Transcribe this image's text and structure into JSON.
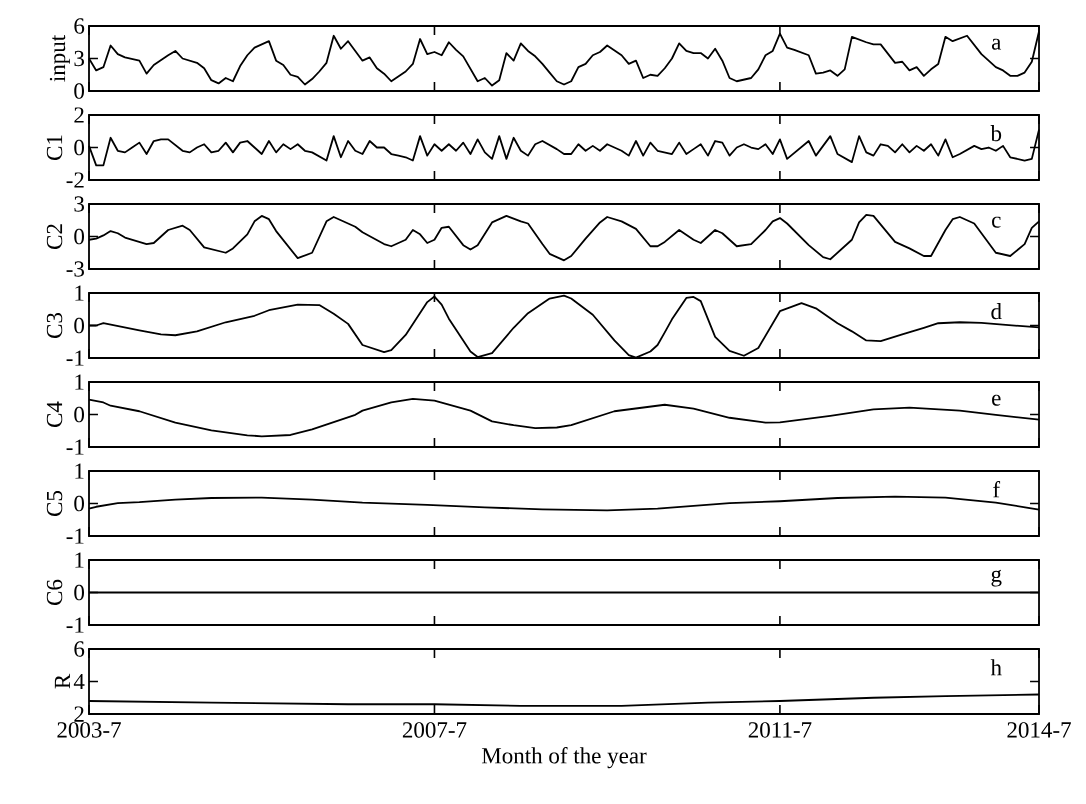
{
  "chart_data": [
    {
      "type": "line",
      "ylabel": "input",
      "annotations": [
        "a"
      ],
      "color": "#000000",
      "tick_labels": "y",
      "xlim": [
        "2003-07",
        "2014-07"
      ],
      "xticks": [
        {
          "value": "2003-07",
          "label": null
        },
        {
          "value": "2007-07",
          "label": null
        },
        {
          "value": "2011-07",
          "label": null
        },
        {
          "value": "2014-07",
          "label": null
        }
      ],
      "ylim": [
        0,
        6
      ],
      "yticks": [
        0,
        3,
        6
      ],
      "x": [
        "2003-07",
        "2003-08",
        "2003-09",
        "2003-10",
        "2003-11",
        "2003-12",
        "2004-02",
        "2004-03",
        "2004-04",
        "2004-06",
        "2004-07",
        "2004-08",
        "2004-10",
        "2004-11",
        "2004-12",
        "2005-01",
        "2005-02",
        "2005-03",
        "2005-04",
        "2005-05",
        "2005-06",
        "2005-08",
        "2005-09",
        "2005-10",
        "2005-11",
        "2005-12",
        "2006-01",
        "2006-02",
        "2006-03",
        "2006-04",
        "2006-05",
        "2006-06",
        "2006-07",
        "2006-08",
        "2006-09",
        "2006-10",
        "2006-11",
        "2006-12",
        "2007-01",
        "2007-03",
        "2007-04",
        "2007-05",
        "2007-06",
        "2007-07",
        "2007-08",
        "2007-09",
        "2007-10",
        "2007-11",
        "2008-01",
        "2008-02",
        "2008-03",
        "2008-04",
        "2008-05",
        "2008-06",
        "2008-07",
        "2008-08",
        "2008-09",
        "2008-10",
        "2008-11",
        "2008-12",
        "2009-01",
        "2009-02",
        "2009-03",
        "2009-04",
        "2009-05",
        "2009-06",
        "2009-07",
        "2009-09",
        "2009-10",
        "2009-11",
        "2009-12",
        "2010-01",
        "2010-02",
        "2010-03",
        "2010-04",
        "2010-05",
        "2010-06",
        "2010-07",
        "2010-08",
        "2010-09",
        "2010-10",
        "2010-11",
        "2010-12",
        "2011-01",
        "2011-03",
        "2011-04",
        "2011-05",
        "2011-06",
        "2011-07",
        "2011-08",
        "2011-09",
        "2011-11",
        "2011-12",
        "2012-01",
        "2012-02",
        "2012-03",
        "2012-04",
        "2012-05",
        "2012-07",
        "2012-08",
        "2012-09",
        "2012-11",
        "2012-12",
        "2013-01",
        "2013-02",
        "2013-03",
        "2013-04",
        "2013-05",
        "2013-06",
        "2013-07",
        "2013-09",
        "2013-11",
        "2014-01",
        "2014-02",
        "2014-03",
        "2014-04",
        "2014-05",
        "2014-06",
        "2014-07"
      ],
      "values": [
        3.0,
        1.9,
        2.2,
        4.2,
        3.4,
        3.1,
        2.8,
        1.6,
        2.4,
        3.3,
        3.7,
        3.0,
        2.6,
        2.1,
        1.0,
        0.7,
        1.2,
        0.9,
        2.3,
        3.3,
        4.0,
        4.6,
        2.8,
        2.4,
        1.5,
        1.3,
        0.6,
        1.1,
        1.8,
        2.6,
        5.1,
        3.9,
        4.6,
        3.7,
        2.8,
        3.1,
        2.1,
        1.6,
        0.9,
        1.8,
        2.5,
        4.8,
        3.4,
        3.6,
        3.3,
        4.5,
        3.8,
        3.2,
        0.9,
        1.2,
        0.5,
        1.0,
        3.5,
        2.8,
        4.4,
        3.7,
        3.2,
        2.5,
        1.7,
        0.9,
        0.6,
        0.9,
        2.2,
        2.5,
        3.3,
        3.6,
        4.2,
        3.3,
        2.5,
        2.8,
        1.2,
        1.5,
        1.4,
        2.1,
        3.0,
        4.4,
        3.7,
        3.5,
        3.5,
        3.0,
        3.9,
        2.8,
        1.2,
        0.9,
        1.2,
        2.0,
        3.3,
        3.7,
        5.3,
        4.0,
        3.8,
        3.3,
        1.6,
        1.7,
        1.9,
        1.4,
        2.0,
        5.0,
        4.5,
        4.3,
        4.3,
        2.6,
        2.7,
        1.9,
        2.2,
        1.4,
        2.0,
        2.5,
        5.0,
        4.6,
        5.1,
        3.4,
        2.2,
        1.9,
        1.4,
        1.4,
        1.7,
        2.7,
        5.5
      ]
    },
    {
      "type": "line",
      "ylabel": "C1",
      "annotations": [
        "b"
      ],
      "color": "#000000",
      "tick_labels": "y",
      "xlim": [
        "2003-07",
        "2014-07"
      ],
      "xticks": [
        {
          "value": "2003-07",
          "label": null
        },
        {
          "value": "2007-07",
          "label": null
        },
        {
          "value": "2011-07",
          "label": null
        },
        {
          "value": "2014-07",
          "label": null
        }
      ],
      "ylim": [
        -2,
        2
      ],
      "yticks": [
        -2,
        0,
        2
      ],
      "x": [
        "2003-07",
        "2003-08",
        "2003-09",
        "2003-10",
        "2003-11",
        "2003-12",
        "2004-01",
        "2004-02",
        "2004-03",
        "2004-04",
        "2004-05",
        "2004-06",
        "2004-08",
        "2004-09",
        "2004-10",
        "2004-11",
        "2004-12",
        "2005-01",
        "2005-02",
        "2005-03",
        "2005-04",
        "2005-05",
        "2005-06",
        "2005-07",
        "2005-08",
        "2005-09",
        "2005-10",
        "2005-11",
        "2005-12",
        "2006-01",
        "2006-02",
        "2006-04",
        "2006-05",
        "2006-06",
        "2006-07",
        "2006-08",
        "2006-09",
        "2006-10",
        "2006-11",
        "2006-12",
        "2007-01",
        "2007-02",
        "2007-03",
        "2007-04",
        "2007-05",
        "2007-06",
        "2007-07",
        "2007-08",
        "2007-09",
        "2007-10",
        "2007-11",
        "2007-12",
        "2008-01",
        "2008-02",
        "2008-03",
        "2008-04",
        "2008-05",
        "2008-06",
        "2008-07",
        "2008-08",
        "2008-09",
        "2008-10",
        "2008-12",
        "2009-01",
        "2009-02",
        "2009-03",
        "2009-04",
        "2009-05",
        "2009-06",
        "2009-07",
        "2009-09",
        "2009-10",
        "2009-11",
        "2009-12",
        "2010-01",
        "2010-02",
        "2010-04",
        "2010-05",
        "2010-06",
        "2010-07",
        "2010-08",
        "2010-09",
        "2010-10",
        "2010-11",
        "2010-12",
        "2011-01",
        "2011-02",
        "2011-03",
        "2011-04",
        "2011-05",
        "2011-06",
        "2011-07",
        "2011-08",
        "2011-11",
        "2011-12",
        "2012-02",
        "2012-03",
        "2012-05",
        "2012-06",
        "2012-07",
        "2012-08",
        "2012-09",
        "2012-10",
        "2012-11",
        "2012-12",
        "2013-01",
        "2013-02",
        "2013-03",
        "2013-04",
        "2013-05",
        "2013-06",
        "2013-07",
        "2013-08",
        "2013-10",
        "2013-11",
        "2013-12",
        "2014-01",
        "2014-02",
        "2014-03",
        "2014-05",
        "2014-06",
        "2014-07"
      ],
      "values": [
        0.1,
        -1.1,
        -1.1,
        0.6,
        -0.2,
        -0.3,
        0.0,
        0.3,
        -0.4,
        0.4,
        0.5,
        0.5,
        -0.2,
        -0.3,
        0.0,
        0.2,
        -0.3,
        -0.2,
        0.3,
        -0.3,
        0.3,
        0.4,
        0.0,
        -0.4,
        0.4,
        -0.3,
        0.2,
        -0.1,
        0.2,
        -0.2,
        -0.3,
        -0.8,
        0.7,
        -0.6,
        0.4,
        -0.2,
        -0.4,
        0.4,
        0.0,
        0.0,
        -0.4,
        -0.5,
        -0.6,
        -0.8,
        0.7,
        -0.5,
        0.2,
        -0.2,
        0.2,
        -0.2,
        0.3,
        -0.4,
        0.5,
        -0.3,
        -0.7,
        0.7,
        -0.7,
        0.6,
        -0.2,
        -0.5,
        0.2,
        0.4,
        -0.1,
        -0.4,
        -0.4,
        0.2,
        -0.2,
        0.1,
        -0.2,
        0.2,
        -0.2,
        -0.5,
        0.4,
        -0.5,
        0.3,
        -0.2,
        -0.4,
        0.3,
        -0.4,
        -0.1,
        0.2,
        -0.5,
        0.4,
        0.3,
        -0.5,
        0.0,
        0.2,
        0.0,
        -0.1,
        0.2,
        -0.4,
        0.5,
        -0.7,
        0.4,
        -0.5,
        0.7,
        -0.4,
        -0.9,
        0.7,
        -0.3,
        -0.5,
        0.2,
        0.1,
        -0.3,
        0.2,
        -0.3,
        0.1,
        -0.2,
        0.2,
        -0.5,
        0.5,
        -0.6,
        -0.4,
        0.1,
        -0.1,
        0.0,
        -0.2,
        0.1,
        -0.6,
        -0.8,
        -0.7,
        1.1
      ]
    },
    {
      "type": "line",
      "ylabel": "C2",
      "annotations": [
        "c"
      ],
      "color": "#000000",
      "tick_labels": "y",
      "xlim": [
        "2003-07",
        "2014-07"
      ],
      "xticks": [
        {
          "value": "2003-07",
          "label": null
        },
        {
          "value": "2007-07",
          "label": null
        },
        {
          "value": "2011-07",
          "label": null
        },
        {
          "value": "2014-07",
          "label": null
        }
      ],
      "ylim": [
        -3,
        3
      ],
      "yticks": [
        -3,
        0,
        3
      ],
      "x": [
        "2003-07",
        "2003-08",
        "2003-09",
        "2003-10",
        "2003-11",
        "2003-12",
        "2004-03",
        "2004-04",
        "2004-06",
        "2004-08",
        "2004-09",
        "2004-11",
        "2005-02",
        "2005-03",
        "2005-05",
        "2005-06",
        "2005-07",
        "2005-08",
        "2005-09",
        "2005-12",
        "2006-02",
        "2006-04",
        "2006-05",
        "2006-08",
        "2006-09",
        "2006-12",
        "2007-01",
        "2007-03",
        "2007-04",
        "2007-05",
        "2007-06",
        "2007-07",
        "2007-08",
        "2007-09",
        "2007-11",
        "2007-12",
        "2008-01",
        "2008-03",
        "2008-05",
        "2008-07",
        "2008-08",
        "2008-10",
        "2008-11",
        "2009-01",
        "2009-02",
        "2009-04",
        "2009-06",
        "2009-07",
        "2009-09",
        "2009-11",
        "2010-01",
        "2010-02",
        "2010-03",
        "2010-05",
        "2010-07",
        "2010-08",
        "2010-10",
        "2010-11",
        "2011-01",
        "2011-03",
        "2011-05",
        "2011-06",
        "2011-07",
        "2011-08",
        "2011-11",
        "2012-01",
        "2012-02",
        "2012-05",
        "2012-06",
        "2012-07",
        "2012-08",
        "2012-11",
        "2013-01",
        "2013-03",
        "2013-04",
        "2013-06",
        "2013-07",
        "2013-08",
        "2013-10",
        "2014-01",
        "2014-03",
        "2014-05",
        "2014-06",
        "2014-07"
      ],
      "values": [
        -0.3,
        -0.2,
        0.1,
        0.5,
        0.3,
        -0.1,
        -0.7,
        -0.6,
        0.6,
        1.0,
        0.6,
        -1.0,
        -1.5,
        -1.1,
        0.2,
        1.4,
        1.9,
        1.6,
        0.5,
        -2.0,
        -1.5,
        1.4,
        1.8,
        0.9,
        0.4,
        -0.7,
        -0.9,
        -0.3,
        0.6,
        0.2,
        -0.6,
        -0.3,
        0.8,
        0.9,
        -0.8,
        -1.2,
        -0.8,
        1.3,
        1.9,
        1.4,
        1.2,
        -0.7,
        -1.6,
        -2.2,
        -1.8,
        -0.2,
        1.3,
        1.8,
        1.4,
        0.7,
        -0.9,
        -0.9,
        -0.5,
        0.6,
        -0.3,
        -0.6,
        0.6,
        0.3,
        -0.9,
        -0.7,
        0.6,
        1.4,
        1.7,
        1.2,
        -0.8,
        -1.9,
        -2.1,
        -0.3,
        1.3,
        2.0,
        1.9,
        -0.5,
        -1.1,
        -1.8,
        -1.8,
        0.6,
        1.6,
        1.8,
        1.2,
        -1.5,
        -1.8,
        -0.7,
        0.8,
        1.4
      ]
    },
    {
      "type": "line",
      "ylabel": "C3",
      "annotations": [
        "d"
      ],
      "color": "#000000",
      "tick_labels": "y",
      "xlim": [
        "2003-07",
        "2014-07"
      ],
      "xticks": [
        {
          "value": "2003-07",
          "label": null
        },
        {
          "value": "2007-07",
          "label": null
        },
        {
          "value": "2011-07",
          "label": null
        },
        {
          "value": "2014-07",
          "label": null
        }
      ],
      "ylim": [
        -1,
        1
      ],
      "yticks": [
        -1,
        0,
        1
      ],
      "x": [
        "2003-07",
        "2003-08",
        "2003-09",
        "2004-02",
        "2004-05",
        "2004-07",
        "2004-10",
        "2005-02",
        "2005-06",
        "2005-08",
        "2005-12",
        "2006-03",
        "2006-05",
        "2006-07",
        "2006-09",
        "2006-12",
        "2007-01",
        "2007-03",
        "2007-06",
        "2007-07",
        "2007-08",
        "2007-09",
        "2007-12",
        "2008-01",
        "2008-03",
        "2008-06",
        "2008-08",
        "2008-11",
        "2009-01",
        "2009-02",
        "2009-05",
        "2009-08",
        "2009-10",
        "2009-11",
        "2010-01",
        "2010-02",
        "2010-03",
        "2010-04",
        "2010-06",
        "2010-07",
        "2010-08",
        "2010-10",
        "2010-12",
        "2011-02",
        "2011-04",
        "2011-07",
        "2011-10",
        "2011-12",
        "2012-03",
        "2012-05",
        "2012-07",
        "2012-09",
        "2012-12",
        "2013-03",
        "2013-05",
        "2013-08",
        "2013-11",
        "2014-03",
        "2014-07"
      ],
      "values": [
        0.0,
        0.0,
        0.07,
        -0.15,
        -0.27,
        -0.3,
        -0.18,
        0.1,
        0.3,
        0.47,
        0.64,
        0.63,
        0.36,
        0.05,
        -0.6,
        -0.82,
        -0.76,
        -0.29,
        0.72,
        0.89,
        0.64,
        0.21,
        -0.8,
        -0.97,
        -0.85,
        -0.07,
        0.38,
        0.83,
        0.92,
        0.83,
        0.33,
        -0.46,
        -0.91,
        -0.99,
        -0.8,
        -0.6,
        -0.21,
        0.19,
        0.85,
        0.88,
        0.75,
        -0.35,
        -0.78,
        -0.93,
        -0.69,
        0.44,
        0.69,
        0.53,
        0.07,
        -0.18,
        -0.46,
        -0.48,
        -0.27,
        -0.07,
        0.07,
        0.1,
        0.08,
        0.01,
        -0.06
      ]
    },
    {
      "type": "line",
      "ylabel": "C4",
      "annotations": [
        "e"
      ],
      "color": "#000000",
      "tick_labels": "y",
      "xlim": [
        "2003-07",
        "2014-07"
      ],
      "xticks": [
        {
          "value": "2003-07",
          "label": null
        },
        {
          "value": "2007-07",
          "label": null
        },
        {
          "value": "2011-07",
          "label": null
        },
        {
          "value": "2014-07",
          "label": null
        }
      ],
      "ylim": [
        -1,
        1
      ],
      "yticks": [
        -1,
        0,
        1
      ],
      "x": [
        "2003-07",
        "2003-09",
        "2003-10",
        "2004-02",
        "2004-07",
        "2004-12",
        "2005-05",
        "2005-07",
        "2005-11",
        "2006-02",
        "2006-08",
        "2006-09",
        "2007-01",
        "2007-04",
        "2007-07",
        "2007-12",
        "2008-03",
        "2008-06",
        "2008-09",
        "2008-12",
        "2009-02",
        "2009-08",
        "2010-03",
        "2010-07",
        "2010-12",
        "2011-05",
        "2011-07",
        "2012-02",
        "2012-08",
        "2013-01",
        "2013-08",
        "2014-01",
        "2014-07"
      ],
      "values": [
        0.46,
        0.37,
        0.27,
        0.1,
        -0.25,
        -0.49,
        -0.64,
        -0.67,
        -0.63,
        -0.46,
        -0.01,
        0.12,
        0.37,
        0.48,
        0.43,
        0.12,
        -0.21,
        -0.33,
        -0.42,
        -0.4,
        -0.33,
        0.1,
        0.3,
        0.18,
        -0.1,
        -0.25,
        -0.24,
        -0.04,
        0.16,
        0.21,
        0.12,
        -0.01,
        -0.16
      ]
    },
    {
      "type": "line",
      "ylabel": "C5",
      "annotations": [
        "f"
      ],
      "color": "#000000",
      "tick_labels": "y",
      "xlim": [
        "2003-07",
        "2014-07"
      ],
      "xticks": [
        {
          "value": "2003-07",
          "label": null
        },
        {
          "value": "2007-07",
          "label": null
        },
        {
          "value": "2011-07",
          "label": null
        },
        {
          "value": "2014-07",
          "label": null
        }
      ],
      "ylim": [
        -1,
        1
      ],
      "yticks": [
        -1,
        0,
        1
      ],
      "x": [
        "2003-07",
        "2003-08",
        "2003-11",
        "2004-02",
        "2004-07",
        "2004-12",
        "2005-07",
        "2006-02",
        "2006-09",
        "2007-06",
        "2008-02",
        "2008-10",
        "2009-07",
        "2010-02",
        "2010-12",
        "2011-07",
        "2012-03",
        "2012-11",
        "2013-06",
        "2014-01",
        "2014-07"
      ],
      "values": [
        -0.16,
        -0.1,
        0.01,
        0.04,
        0.12,
        0.17,
        0.18,
        0.12,
        0.03,
        -0.04,
        -0.12,
        -0.18,
        -0.21,
        -0.16,
        0.01,
        0.07,
        0.17,
        0.21,
        0.18,
        0.03,
        -0.19
      ]
    },
    {
      "type": "line",
      "ylabel": "C6",
      "annotations": [
        "g"
      ],
      "color": "#000000",
      "tick_labels": "y",
      "xlim": [
        "2003-07",
        "2014-07"
      ],
      "xticks": [
        {
          "value": "2003-07",
          "label": null
        },
        {
          "value": "2007-07",
          "label": null
        },
        {
          "value": "2011-07",
          "label": null
        },
        {
          "value": "2014-07",
          "label": null
        }
      ],
      "ylim": [
        -1,
        1
      ],
      "yticks": [
        -1,
        0,
        1
      ],
      "x": [
        "2003-07",
        "2014-07"
      ],
      "values": [
        0,
        0
      ]
    },
    {
      "type": "line",
      "ylabel": "R",
      "xlabel": "Month of the year",
      "annotations": [
        "h"
      ],
      "color": "#000000",
      "xlim": [
        "2003-07",
        "2014-07"
      ],
      "xticks": [
        {
          "value": "2003-07",
          "label": "2003-7"
        },
        {
          "value": "2007-07",
          "label": "2007-7"
        },
        {
          "value": "2011-07",
          "label": "2011-7"
        },
        {
          "value": "2014-07",
          "label": "2014-7"
        }
      ],
      "ylim": [
        2,
        6
      ],
      "yticks": [
        2,
        4,
        6
      ],
      "x": [
        "2003-07",
        "2004-12",
        "2006-07",
        "2007-07",
        "2008-07",
        "2009-09",
        "2010-09",
        "2011-07",
        "2012-08",
        "2013-06",
        "2014-07"
      ],
      "values": [
        2.8,
        2.7,
        2.6,
        2.6,
        2.5,
        2.5,
        2.7,
        2.8,
        3.0,
        3.1,
        3.2
      ]
    }
  ]
}
